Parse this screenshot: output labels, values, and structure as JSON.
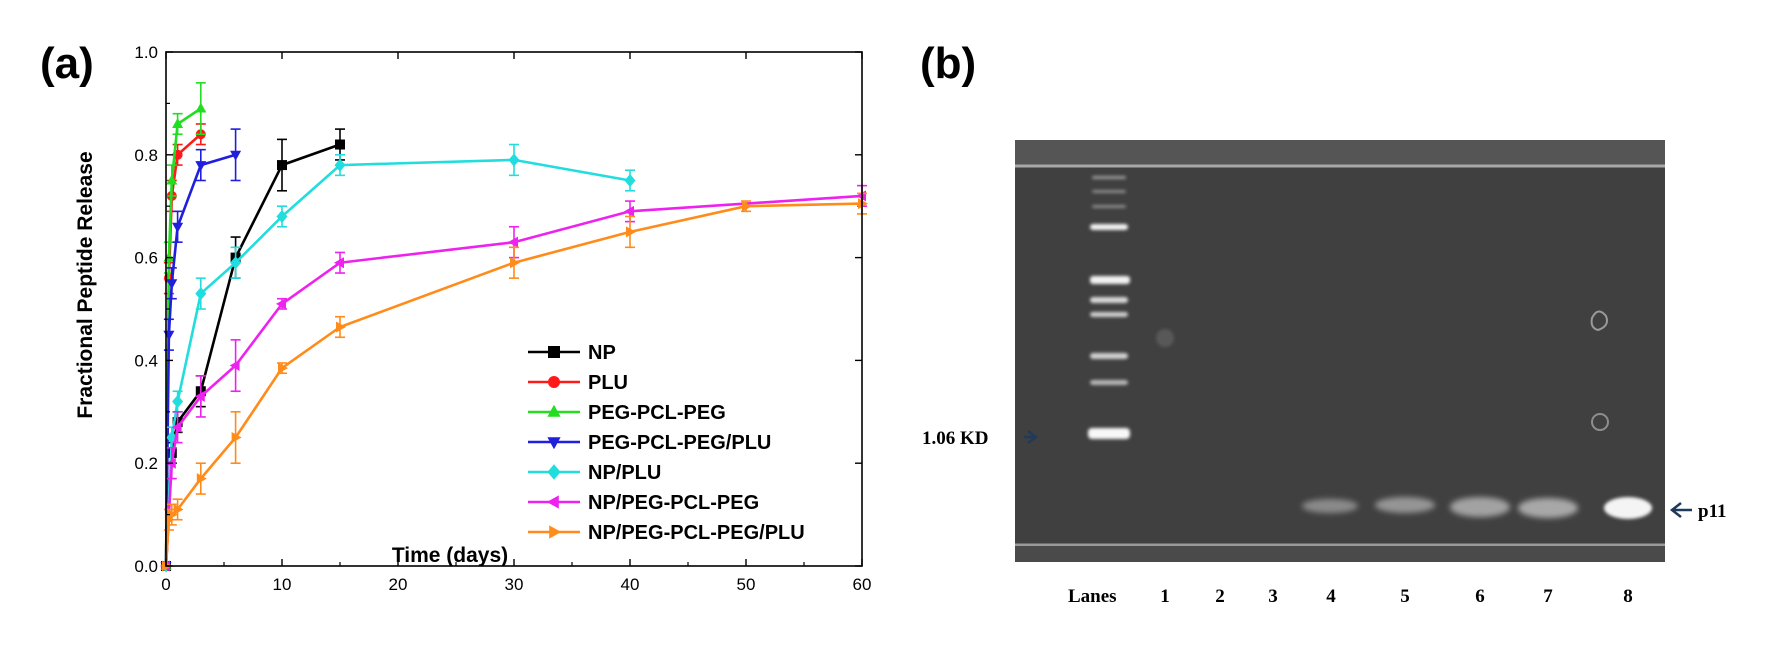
{
  "panels": {
    "a": {
      "label": "(a)"
    },
    "b": {
      "label": "(b)"
    }
  },
  "chart_data": [
    {
      "type": "line",
      "panel": "(a)",
      "xlabel": "Time (days)",
      "ylabel": "Fractional Peptide Release",
      "xlim": [
        0,
        60
      ],
      "ylim": [
        0,
        1.0
      ],
      "xticks": [
        "0",
        "10",
        "20",
        "30",
        "40",
        "50",
        "60"
      ],
      "yticks": [
        "0.0",
        "0.2",
        "0.4",
        "0.6",
        "0.8",
        "1.0"
      ],
      "grid": false,
      "legend_position": "center-right",
      "series": [
        {
          "name": "NP",
          "color": "#000000",
          "marker": "square",
          "x": [
            0,
            0.5,
            1,
            3,
            6,
            10,
            15
          ],
          "y": [
            0.0,
            0.22,
            0.28,
            0.34,
            0.6,
            0.78,
            0.82
          ],
          "err": [
            0.0,
            0.02,
            0.02,
            0.03,
            0.04,
            0.05,
            0.03
          ]
        },
        {
          "name": "PLU",
          "color": "#ff1a1a",
          "marker": "circle",
          "x": [
            0,
            0.25,
            0.5,
            1,
            3
          ],
          "y": [
            0.0,
            0.56,
            0.72,
            0.8,
            0.84
          ],
          "err": [
            0.0,
            0.03,
            0.03,
            0.02,
            0.02
          ]
        },
        {
          "name": "PEG-PCL-PEG",
          "color": "#22dd22",
          "marker": "triangle-up",
          "x": [
            0,
            0.25,
            0.5,
            1,
            3
          ],
          "y": [
            0.0,
            0.6,
            0.75,
            0.86,
            0.89
          ],
          "err": [
            0.0,
            0.03,
            0.03,
            0.02,
            0.05
          ]
        },
        {
          "name": "PEG-PCL-PEG/PLU",
          "color": "#1f1fdd",
          "marker": "triangle-down",
          "x": [
            0,
            0.25,
            0.5,
            1,
            3,
            6
          ],
          "y": [
            0.0,
            0.45,
            0.55,
            0.66,
            0.78,
            0.8
          ],
          "err": [
            0.0,
            0.03,
            0.03,
            0.03,
            0.03,
            0.05
          ]
        },
        {
          "name": "NP/PLU",
          "color": "#22dddd",
          "marker": "diamond",
          "x": [
            0,
            0.5,
            1,
            3,
            6,
            10,
            15,
            30,
            40
          ],
          "y": [
            0.0,
            0.25,
            0.32,
            0.53,
            0.59,
            0.68,
            0.78,
            0.79,
            0.75
          ],
          "err": [
            0.0,
            0.02,
            0.02,
            0.03,
            0.03,
            0.02,
            0.02,
            0.03,
            0.02
          ]
        },
        {
          "name": "NP/PEG-PCL-PEG",
          "color": "#ee22ee",
          "marker": "triangle-left",
          "x": [
            0,
            0.5,
            1,
            3,
            6,
            10,
            15,
            30,
            40,
            60
          ],
          "y": [
            0.0,
            0.2,
            0.27,
            0.33,
            0.39,
            0.51,
            0.59,
            0.63,
            0.69,
            0.72
          ],
          "err": [
            0.0,
            0.03,
            0.03,
            0.04,
            0.05,
            0.01,
            0.02,
            0.03,
            0.02,
            0.02
          ]
        },
        {
          "name": "NP/PEG-PCL-PEG/PLU",
          "color": "#ff8c1a",
          "marker": "triangle-right",
          "x": [
            0,
            0.25,
            0.5,
            1,
            3,
            6,
            10,
            15,
            30,
            40,
            50,
            60
          ],
          "y": [
            0.0,
            0.09,
            0.1,
            0.11,
            0.17,
            0.25,
            0.385,
            0.465,
            0.59,
            0.65,
            0.7,
            0.705
          ],
          "err": [
            0.0,
            0.02,
            0.02,
            0.02,
            0.03,
            0.05,
            0.01,
            0.02,
            0.03,
            0.03,
            0.01,
            0.02
          ]
        }
      ]
    },
    {
      "type": "other",
      "panel": "(b)",
      "description_free": true,
      "marker_label": "1.06 KD",
      "band_label": "p11",
      "lanes_label": "Lanes",
      "lanes": [
        "1",
        "2",
        "3",
        "4",
        "5",
        "6",
        "7",
        "8"
      ]
    }
  ]
}
